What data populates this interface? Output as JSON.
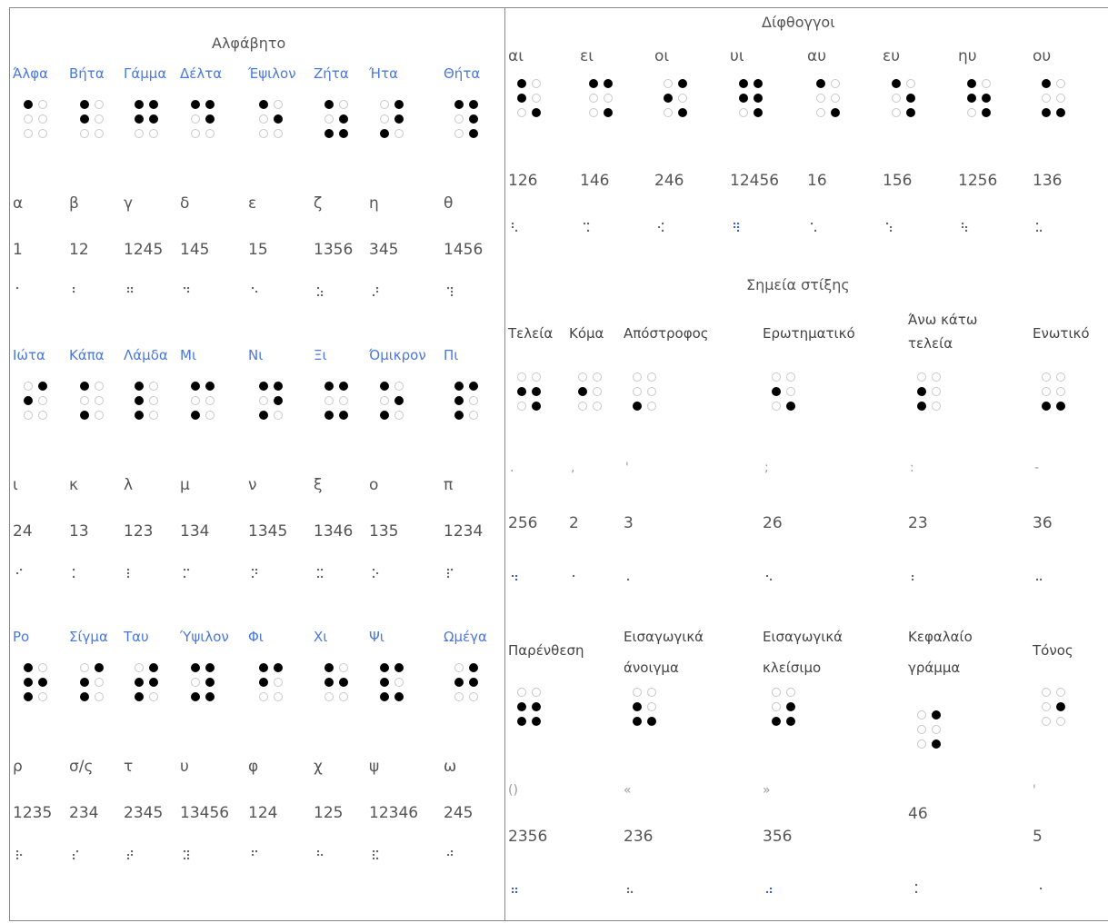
{
  "alphabet": {
    "title": "Αλφάβητο",
    "rows": [
      [
        {
          "name": "Άλφα",
          "letter": "α",
          "code": "1",
          "glyph": "⠁",
          "dots": [
            1
          ]
        },
        {
          "name": "Βήτα",
          "letter": "β",
          "code": "12",
          "glyph": "⠃",
          "dots": [
            1,
            2
          ]
        },
        {
          "name": "Γάμμα",
          "letter": "γ",
          "code": "1245",
          "glyph": "⠛",
          "dots": [
            1,
            2,
            4,
            5
          ]
        },
        {
          "name": "Δέλτα",
          "letter": "δ",
          "code": "145",
          "glyph": "⠙",
          "dots": [
            1,
            4,
            5
          ]
        },
        {
          "name": "Έψιλον",
          "letter": "ε",
          "code": "15",
          "glyph": "⠑",
          "dots": [
            1,
            5
          ]
        },
        {
          "name": "Ζήτα",
          "letter": "ζ",
          "code": "1356",
          "glyph": "⠵",
          "dots": [
            1,
            3,
            5,
            6
          ]
        },
        {
          "name": "Ήτα",
          "letter": "η",
          "code": "345",
          "glyph": "⠜",
          "dots": [
            3,
            4,
            5
          ]
        },
        {
          "name": "Θήτα",
          "letter": "θ",
          "code": "1456",
          "glyph": "⠹",
          "dots": [
            1,
            4,
            5,
            6
          ]
        }
      ],
      [
        {
          "name": "Ιώτα",
          "letter": "ι",
          "code": "24",
          "glyph": "⠊",
          "dots": [
            2,
            4
          ]
        },
        {
          "name": "Κάπα",
          "letter": "κ",
          "code": "13",
          "glyph": "⠅",
          "dots": [
            1,
            3
          ]
        },
        {
          "name": "Λάμδα",
          "letter": "λ",
          "code": "123",
          "glyph": "⠇",
          "dots": [
            1,
            2,
            3
          ]
        },
        {
          "name": "Μι",
          "letter": "μ",
          "code": "134",
          "glyph": "⠍",
          "dots": [
            1,
            3,
            4
          ]
        },
        {
          "name": "Νι",
          "letter": "ν",
          "code": "1345",
          "glyph": "⠝",
          "dots": [
            1,
            3,
            4,
            5
          ]
        },
        {
          "name": "Ξι",
          "letter": "ξ",
          "code": "1346",
          "glyph": "⠭",
          "dots": [
            1,
            3,
            4,
            6
          ]
        },
        {
          "name": "Όμικρον",
          "letter": "ο",
          "code": "135",
          "glyph": "⠕",
          "dots": [
            1,
            3,
            5
          ]
        },
        {
          "name": "Πι",
          "letter": "π",
          "code": "1234",
          "glyph": "⠏",
          "dots": [
            1,
            2,
            3,
            4
          ]
        }
      ],
      [
        {
          "name": "Ρο",
          "letter": "ρ",
          "code": "1235",
          "glyph": "⠗",
          "dots": [
            1,
            2,
            3,
            5
          ]
        },
        {
          "name": "Σίγμα",
          "letter": "σ/ς",
          "code": "234",
          "glyph": "⠎",
          "dots": [
            2,
            3,
            4
          ]
        },
        {
          "name": "Ταυ",
          "letter": "τ",
          "code": "2345",
          "glyph": "⠞",
          "dots": [
            2,
            3,
            4,
            5
          ]
        },
        {
          "name": "Ύψιλον",
          "letter": "υ",
          "code": "13456",
          "glyph": "⠽",
          "dots": [
            1,
            3,
            4,
            5,
            6
          ]
        },
        {
          "name": "Φι",
          "letter": "φ",
          "code": "124",
          "glyph": "⠋",
          "dots": [
            1,
            2,
            4
          ]
        },
        {
          "name": "Χι",
          "letter": "χ",
          "code": "125",
          "glyph": "⠓",
          "dots": [
            1,
            2,
            5
          ]
        },
        {
          "name": "Ψι",
          "letter": "ψ",
          "code": "12346",
          "glyph": "⠯",
          "dots": [
            1,
            2,
            3,
            4,
            6
          ]
        },
        {
          "name": "Ωμέγα",
          "letter": "ω",
          "code": "245",
          "glyph": "⠚",
          "dots": [
            2,
            4,
            5
          ]
        }
      ]
    ]
  },
  "diphthongs": {
    "title": "Δίφθογγοι",
    "items": [
      {
        "name": "αι",
        "code": "126",
        "glyph": "⠣",
        "dots": [
          1,
          2,
          6
        ]
      },
      {
        "name": "ει",
        "code": "146",
        "glyph": "⠩",
        "dots": [
          1,
          4,
          6
        ]
      },
      {
        "name": "οι",
        "code": "246",
        "glyph": "⠪",
        "dots": [
          2,
          4,
          6
        ]
      },
      {
        "name": "υι",
        "code": "12456",
        "glyph": "⠻",
        "dots": [
          1,
          2,
          4,
          5,
          6
        ]
      },
      {
        "name": "αυ",
        "code": "16",
        "glyph": "⠡",
        "dots": [
          1,
          6
        ]
      },
      {
        "name": "ευ",
        "code": "156",
        "glyph": "⠱",
        "dots": [
          1,
          5,
          6
        ]
      },
      {
        "name": "ηυ",
        "code": "1256",
        "glyph": "⠳",
        "dots": [
          1,
          2,
          5,
          6
        ]
      },
      {
        "name": "ου",
        "code": "136",
        "glyph": "⠥",
        "dots": [
          1,
          3,
          6
        ]
      }
    ]
  },
  "punctuation": {
    "title": "Σημεία στίξης",
    "row1": [
      {
        "name": "Τελεία",
        "char": ".",
        "code": "256",
        "glyph": "⠲",
        "dots": [
          2,
          5,
          6
        ]
      },
      {
        "name": "Κόμα",
        "char": ",",
        "code": "2",
        "glyph": "⠂",
        "dots": [
          2
        ]
      },
      {
        "name": "Απόστροφος",
        "char": "'",
        "code": "3",
        "glyph": "⠄",
        "dots": [
          3
        ]
      },
      {
        "name": "Ερωτηματικό",
        "char": ";",
        "code": "26",
        "glyph": "⠢",
        "dots": [
          2,
          6
        ]
      },
      {
        "name": "Άνω κάτω τελεία",
        "char": ":",
        "code": "23",
        "glyph": "⠆",
        "dots": [
          2,
          3
        ]
      },
      {
        "name": "Ενωτικό",
        "char": "-",
        "code": "36",
        "glyph": "⠤",
        "dots": [
          3,
          6
        ]
      }
    ],
    "row2": [
      {
        "name": "Παρένθεση",
        "char": "()",
        "code": "2356",
        "glyph": "⠶",
        "dots": [
          2,
          3,
          5,
          6
        ]
      },
      {
        "name": "Εισαγωγικά άνοιγμα",
        "char": "«",
        "code": "236",
        "glyph": "⠦",
        "dots": [
          2,
          3,
          6
        ]
      },
      {
        "name": "Εισαγωγικά κλείσιμο",
        "char": "»",
        "code": "356",
        "glyph": "⠴",
        "dots": [
          3,
          5,
          6
        ]
      },
      {
        "name": "Κεφαλαίο γράμμα",
        "char": "",
        "code": "46",
        "glyph": "⠨",
        "dots": [
          4,
          6
        ]
      },
      {
        "name": "Τόνος",
        "char": "'",
        "code": "5",
        "glyph": "⠐",
        "dots": [
          5
        ]
      }
    ]
  }
}
